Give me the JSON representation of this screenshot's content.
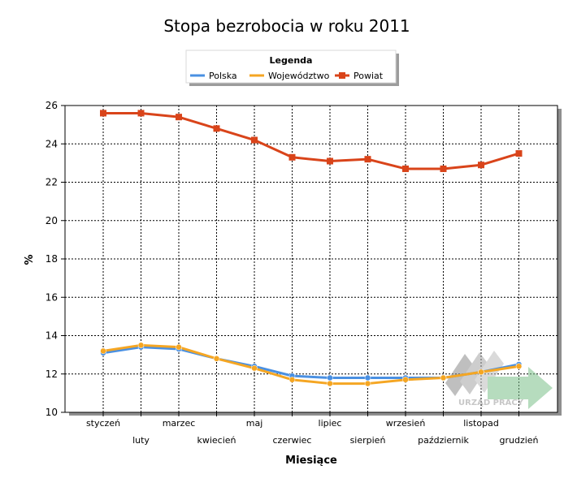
{
  "chart_data": {
    "type": "line",
    "title": "Stopa bezrobocia w roku 2011",
    "xlabel": "Miesiące",
    "ylabel": "%",
    "ylim": [
      10,
      26
    ],
    "yticks": [
      10,
      12,
      14,
      16,
      18,
      20,
      22,
      24,
      26
    ],
    "grid": true,
    "legend": {
      "title": "Legenda",
      "placement": "top-center"
    },
    "categories": [
      "styczeń",
      "luty",
      "marzec",
      "kwiecień",
      "maj",
      "czerwiec",
      "lipiec",
      "sierpień",
      "wrzesień",
      "październik",
      "listopad",
      "grudzień"
    ],
    "series": [
      {
        "name": "Polska",
        "color": "#4a90e2",
        "marker": "circle",
        "values": [
          13.1,
          13.4,
          13.3,
          12.8,
          12.4,
          11.9,
          11.8,
          11.8,
          11.8,
          11.8,
          12.1,
          12.5
        ]
      },
      {
        "name": "Województwo",
        "color": "#f5a623",
        "marker": "circle",
        "values": [
          13.2,
          13.5,
          13.4,
          12.8,
          12.3,
          11.7,
          11.5,
          11.5,
          11.7,
          11.8,
          12.1,
          12.4
        ]
      },
      {
        "name": "Powiat",
        "color": "#d9441a",
        "marker": "square",
        "values": [
          25.6,
          25.6,
          25.4,
          24.8,
          24.2,
          23.3,
          23.1,
          23.2,
          22.7,
          22.7,
          22.9,
          23.5
        ]
      }
    ]
  },
  "watermark": {
    "text": "URZĄD PRACY"
  }
}
